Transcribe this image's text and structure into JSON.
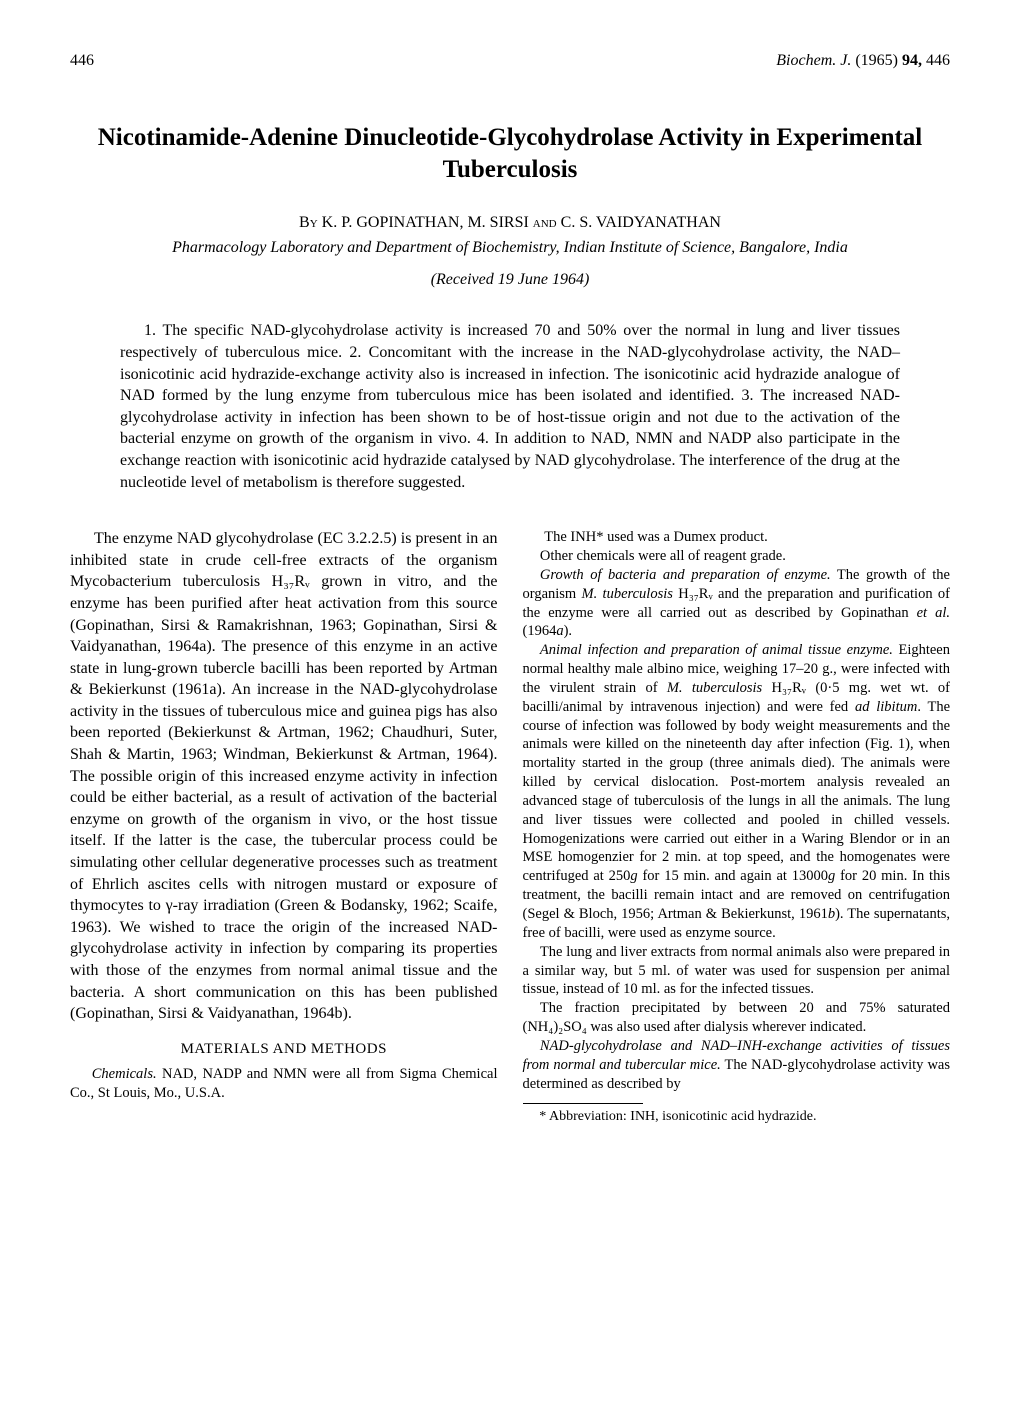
{
  "page_number": "446",
  "journal_ref_text": "Biochem. J.",
  "journal_year": "(1965)",
  "journal_vol": "94,",
  "journal_page": "446",
  "title": "Nicotinamide-Adenine Dinucleotide-Glycohydrolase Activity in Experimental Tuberculosis",
  "authors_by": "By",
  "authors_names": "K. P. GOPINATHAN, M. SIRSI",
  "authors_and": "and",
  "authors_last": "C. S. VAIDYANATHAN",
  "affiliation": "Pharmacology Laboratory and Department of Biochemistry, Indian Institute of Science, Bangalore, India",
  "received": "(Received 19 June 1964)",
  "abstract_text": "1. The specific NAD-glycohydrolase activity is increased 70 and 50% over the normal in lung and liver tissues respectively of tuberculous mice. 2. Concomitant with the increase in the NAD-glycohydrolase activity, the NAD–isonicotinic acid hydrazide-exchange activity also is increased in infection. The isonicotinic acid hydrazide analogue of NAD formed by the lung enzyme from tuberculous mice has been isolated and identified. 3. The increased NAD-glycohydrolase activity in infection has been shown to be of host-tissue origin and not due to the activation of the bacterial enzyme on growth of the organism in vivo. 4. In addition to NAD, NMN and NADP also participate in the exchange reaction with isonicotinic acid hydrazide catalysed by NAD glycohydrolase. The interference of the drug at the nucleotide level of metabolism is therefore suggested.",
  "col1_para1": "The enzyme NAD glycohydrolase (EC 3.2.2.5) is present in an inhibited state in crude cell-free extracts of the organism Mycobacterium tuberculosis H₃₇Rᵥ grown in vitro, and the enzyme has been purified after heat activation from this source (Gopinathan, Sirsi & Ramakrishnan, 1963; Gopinathan, Sirsi & Vaidyanathan, 1964a). The presence of this enzyme in an active state in lung-grown tubercle bacilli has been reported by Artman & Bekierkunst (1961a). An increase in the NAD-glycohydrolase activity in the tissues of tuberculous mice and guinea pigs has also been reported (Bekierkunst & Artman, 1962; Chaudhuri, Suter, Shah & Martin, 1963; Windman, Bekierkunst & Artman, 1964). The possible origin of this increased enzyme activity in infection could be either bacterial, as a result of activation of the bacterial enzyme on growth of the organism in vivo, or the host tissue itself. If the latter is the case, the tubercular process could be simulating other cellular degenerative processes such as treatment of Ehrlich ascites cells with nitrogen mustard or exposure of thymocytes to γ-ray irradiation (Green & Bodansky, 1962; Scaife, 1963). We wished to trace the origin of the increased NAD-glycohydrolase activity in infection by comparing its properties with those of the enzymes from normal animal tissue and the bacteria. A short communication on this has been published (Gopinathan, Sirsi & Vaidyanathan, 1964b).",
  "methods_heading": "MATERIALS AND METHODS",
  "col1_methods_p1": "Chemicals. NAD, NADP and NMN were all from Sigma Chemical Co., St Louis, Mo., U.S.A.",
  "col2_p1": "The INH* used was a Dumex product.",
  "col2_p2": "Other chemicals were all of reagent grade.",
  "col2_p3": "Growth of bacteria and preparation of enzyme. The growth of the organism M. tuberculosis H₃₇Rᵥ and the preparation and purification of the enzyme were all carried out as described by Gopinathan et al. (1964a).",
  "col2_p4": "Animal infection and preparation of animal tissue enzyme. Eighteen normal healthy male albino mice, weighing 17–20 g., were infected with the virulent strain of M. tuberculosis H₃₇Rᵥ (0·5 mg. wet wt. of bacilli/animal by intravenous injection) and were fed ad libitum. The course of infection was followed by body weight measurements and the animals were killed on the nineteenth day after infection (Fig. 1), when mortality started in the group (three animals died). The animals were killed by cervical dislocation. Post-mortem analysis revealed an advanced stage of tuberculosis of the lungs in all the animals. The lung and liver tissues were collected and pooled in chilled vessels. Homogenizations were carried out either in a Waring Blendor or in an MSE homogenzier for 2 min. at top speed, and the homogenates were centrifuged at 250g for 15 min. and again at 13000g for 20 min. In this treatment, the bacilli remain intact and are removed on centrifugation (Segel & Bloch, 1956; Artman & Bekierkunst, 1961b). The supernatants, free of bacilli, were used as enzyme source.",
  "col2_p5": "The lung and liver extracts from normal animals also were prepared in a similar way, but 5 ml. of water was used for suspension per animal tissue, instead of 10 ml. as for the infected tissues.",
  "col2_p6": "The fraction precipitated by between 20 and 75% saturated (NH₄)₂SO₄ was also used after dialysis wherever indicated.",
  "col2_p7": "NAD-glycohydrolase and NAD–INH-exchange activities of tissues from normal and tubercular mice. The NAD-glycohydrolase activity was determined as described by",
  "footnote": "* Abbreviation: INH, isonicotinic acid hydrazide."
}
